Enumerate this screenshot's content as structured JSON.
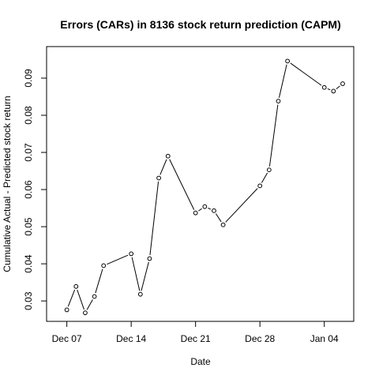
{
  "chart_data": {
    "type": "line",
    "title": "Errors (CARs) in 8136 stock return prediction (CAPM)",
    "xlabel": "Date",
    "ylabel": "Cumulative Actual - Predicted stock return",
    "xlim": [
      "2015-12-06",
      "2016-01-06"
    ],
    "ylim": [
      0.0245,
      0.0985
    ],
    "x_ticks": [
      {
        "date": "2015-12-07",
        "label": "Dec 07"
      },
      {
        "date": "2015-12-14",
        "label": "Dec 14"
      },
      {
        "date": "2015-12-21",
        "label": "Dec 21"
      },
      {
        "date": "2015-12-28",
        "label": "Dec 28"
      },
      {
        "date": "2016-01-04",
        "label": "Jan 04"
      }
    ],
    "y_ticks": [
      {
        "value": 0.03,
        "label": "0.03"
      },
      {
        "value": 0.04,
        "label": "0.04"
      },
      {
        "value": 0.05,
        "label": "0.05"
      },
      {
        "value": 0.06,
        "label": "0.06"
      },
      {
        "value": 0.07,
        "label": "0.07"
      },
      {
        "value": 0.08,
        "label": "0.08"
      },
      {
        "value": 0.09,
        "label": "0.09"
      }
    ],
    "series": [
      {
        "points": [
          {
            "x": "2015-12-07",
            "y": 0.0276
          },
          {
            "x": "2015-12-08",
            "y": 0.0339
          },
          {
            "x": "2015-12-09",
            "y": 0.0268
          },
          {
            "x": "2015-12-10",
            "y": 0.0312
          },
          {
            "x": "2015-12-11",
            "y": 0.0395
          },
          {
            "x": "2015-12-14",
            "y": 0.0427
          },
          {
            "x": "2015-12-15",
            "y": 0.0318
          },
          {
            "x": "2015-12-16",
            "y": 0.0414
          },
          {
            "x": "2015-12-17",
            "y": 0.0631
          },
          {
            "x": "2015-12-18",
            "y": 0.069
          },
          {
            "x": "2015-12-21",
            "y": 0.0537
          },
          {
            "x": "2015-12-22",
            "y": 0.0554
          },
          {
            "x": "2015-12-23",
            "y": 0.0543
          },
          {
            "x": "2015-12-24",
            "y": 0.0505
          },
          {
            "x": "2015-12-28",
            "y": 0.061
          },
          {
            "x": "2015-12-29",
            "y": 0.0653
          },
          {
            "x": "2015-12-30",
            "y": 0.0838
          },
          {
            "x": "2015-12-31",
            "y": 0.0946
          },
          {
            "x": "2016-01-04",
            "y": 0.0875
          },
          {
            "x": "2016-01-05",
            "y": 0.0865
          },
          {
            "x": "2016-01-06",
            "y": 0.0885
          }
        ]
      }
    ],
    "grid": false,
    "marker": "open-circle",
    "line_color": "#000000"
  }
}
